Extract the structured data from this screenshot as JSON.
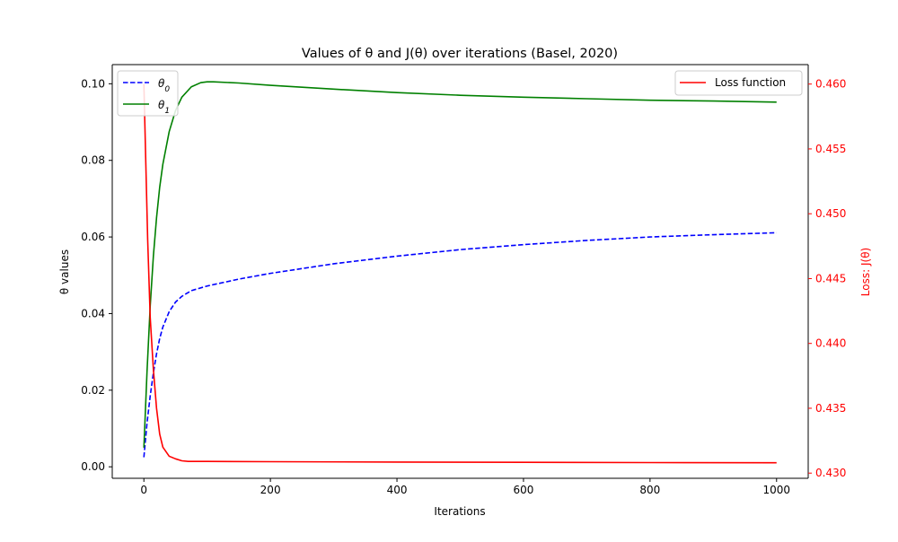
{
  "chart_data": {
    "type": "line",
    "title": "Values of θ and J(θ) over iterations (Basel, 2020)",
    "xlabel": "Iterations",
    "ylabel_left": "θ values",
    "ylabel_right": "Loss: J(θ)",
    "xlim": [
      -50,
      1050
    ],
    "ylim_left": [
      -0.003,
      0.105
    ],
    "ylim_right": [
      0.4296,
      0.4615
    ],
    "x_ticks": [
      0,
      200,
      400,
      600,
      800,
      1000
    ],
    "y_left_ticks": [
      0.0,
      0.02,
      0.04,
      0.06,
      0.08,
      0.1
    ],
    "y_left_tick_labels": [
      "0.00",
      "0.02",
      "0.04",
      "0.06",
      "0.08",
      "0.10"
    ],
    "y_right_ticks": [
      0.43,
      0.435,
      0.44,
      0.445,
      0.45,
      0.455,
      0.46
    ],
    "y_right_tick_labels": [
      "0.430",
      "0.435",
      "0.440",
      "0.445",
      "0.450",
      "0.455",
      "0.460"
    ],
    "grid": false,
    "legends": [
      {
        "placement": "upper-left",
        "entries": [
          "θ0",
          "θ1"
        ]
      },
      {
        "placement": "upper-right",
        "entries": [
          "Loss function"
        ]
      }
    ],
    "colors": {
      "theta0": "#0000ff",
      "theta1": "#008000",
      "loss": "#ff0000",
      "right_axis": "#ff0000"
    },
    "series": [
      {
        "name": "θ0",
        "axis": "left",
        "style": "dashed",
        "x": [
          0,
          5,
          10,
          15,
          20,
          25,
          30,
          40,
          50,
          60,
          75,
          100,
          150,
          200,
          300,
          400,
          500,
          600,
          700,
          800,
          900,
          1000
        ],
        "values": [
          0.0025,
          0.0115,
          0.0185,
          0.0245,
          0.0295,
          0.0335,
          0.0365,
          0.0405,
          0.043,
          0.0445,
          0.046,
          0.0472,
          0.049,
          0.0505,
          0.053,
          0.055,
          0.0567,
          0.058,
          0.0591,
          0.06,
          0.0606,
          0.0611
        ]
      },
      {
        "name": "θ1",
        "axis": "left",
        "style": "solid",
        "x": [
          0,
          5,
          10,
          15,
          20,
          25,
          30,
          40,
          50,
          60,
          75,
          90,
          100,
          110,
          150,
          200,
          300,
          400,
          500,
          600,
          700,
          800,
          900,
          1000
        ],
        "values": [
          0.005,
          0.025,
          0.042,
          0.055,
          0.065,
          0.073,
          0.079,
          0.0875,
          0.093,
          0.0965,
          0.0992,
          0.1003,
          0.1005,
          0.1005,
          0.1002,
          0.0996,
          0.0986,
          0.0977,
          0.097,
          0.0965,
          0.0961,
          0.0957,
          0.0955,
          0.0952
        ]
      },
      {
        "name": "Loss function",
        "axis": "right",
        "style": "solid",
        "x": [
          0,
          3,
          6,
          10,
          15,
          20,
          25,
          30,
          40,
          50,
          60,
          70,
          100,
          200,
          400,
          600,
          800,
          1000
        ],
        "values": [
          0.46,
          0.454,
          0.448,
          0.442,
          0.438,
          0.435,
          0.433,
          0.432,
          0.4313,
          0.4311,
          0.43095,
          0.4309,
          0.4309,
          0.43088,
          0.43085,
          0.43083,
          0.43081,
          0.4308
        ]
      }
    ]
  }
}
